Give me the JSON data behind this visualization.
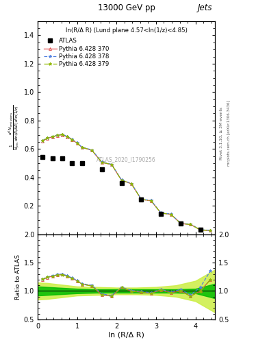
{
  "title": "13000 GeV pp",
  "title_right": "Jets",
  "panel_title": "ln(R/Δ R) (Lund plane 4.57<ln(1/z)<4.85)",
  "xlabel": "ln (R/Δ R)",
  "ylabel_ratio": "Ratio to ATLAS",
  "watermark": "ATLAS_2020_I1790256",
  "right_label1": "Rivet 3.1.10, ≥ 3M events",
  "right_label2": "mcplots.cern.ch [arXiv:1306.3436]",
  "xlim": [
    0,
    4.5
  ],
  "ylim_main": [
    0,
    1.5
  ],
  "ylim_ratio": [
    0.5,
    2.0
  ],
  "yticks_main": [
    0.2,
    0.4,
    0.6,
    0.8,
    1.0,
    1.2,
    1.4
  ],
  "yticks_ratio": [
    0.5,
    1.0,
    1.5,
    2.0
  ],
  "atlas_x": [
    0.125,
    0.375,
    0.625,
    0.875,
    1.125,
    1.625,
    2.125,
    2.625,
    3.125,
    3.625,
    4.125
  ],
  "atlas_y": [
    0.545,
    0.535,
    0.535,
    0.5,
    0.5,
    0.455,
    0.358,
    0.245,
    0.145,
    0.075,
    0.03
  ],
  "pythia370_x": [
    0.125,
    0.25,
    0.375,
    0.5,
    0.625,
    0.75,
    0.875,
    1.0,
    1.125,
    1.375,
    1.625,
    1.875,
    2.125,
    2.375,
    2.625,
    2.875,
    3.125,
    3.375,
    3.625,
    3.875,
    4.125,
    4.375
  ],
  "pythia370_y": [
    0.655,
    0.675,
    0.685,
    0.695,
    0.7,
    0.685,
    0.665,
    0.64,
    0.61,
    0.59,
    0.505,
    0.49,
    0.38,
    0.355,
    0.245,
    0.235,
    0.148,
    0.14,
    0.075,
    0.068,
    0.03,
    0.025
  ],
  "pythia378_x": [
    0.125,
    0.25,
    0.375,
    0.5,
    0.625,
    0.75,
    0.875,
    1.0,
    1.125,
    1.375,
    1.625,
    1.875,
    2.125,
    2.375,
    2.625,
    2.875,
    3.125,
    3.375,
    3.625,
    3.875,
    4.125,
    4.375
  ],
  "pythia378_y": [
    0.66,
    0.678,
    0.688,
    0.698,
    0.703,
    0.688,
    0.668,
    0.643,
    0.613,
    0.593,
    0.508,
    0.492,
    0.382,
    0.357,
    0.247,
    0.237,
    0.15,
    0.142,
    0.077,
    0.07,
    0.032,
    0.027
  ],
  "pythia379_x": [
    0.125,
    0.25,
    0.375,
    0.5,
    0.625,
    0.75,
    0.875,
    1.0,
    1.125,
    1.375,
    1.625,
    1.875,
    2.125,
    2.375,
    2.625,
    2.875,
    3.125,
    3.375,
    3.625,
    3.875,
    4.125,
    4.375
  ],
  "pythia379_y": [
    0.658,
    0.676,
    0.686,
    0.696,
    0.701,
    0.686,
    0.666,
    0.641,
    0.611,
    0.591,
    0.506,
    0.49,
    0.38,
    0.355,
    0.245,
    0.235,
    0.148,
    0.14,
    0.075,
    0.068,
    0.03,
    0.025
  ],
  "ratio370_y": [
    1.2,
    1.24,
    1.26,
    1.28,
    1.29,
    1.26,
    1.22,
    1.18,
    1.12,
    1.09,
    0.93,
    0.91,
    1.06,
    1.0,
    0.98,
    0.96,
    1.02,
    0.97,
    1.0,
    0.91,
    1.0,
    1.2
  ],
  "ratio378_y": [
    1.21,
    1.25,
    1.27,
    1.29,
    1.3,
    1.27,
    1.23,
    1.19,
    1.13,
    1.1,
    0.95,
    0.92,
    1.07,
    1.01,
    0.99,
    0.97,
    1.03,
    0.98,
    1.03,
    0.93,
    1.07,
    1.35
  ],
  "ratio379_y": [
    1.205,
    1.243,
    1.26,
    1.278,
    1.288,
    1.258,
    1.22,
    1.18,
    1.12,
    1.088,
    0.932,
    0.91,
    1.062,
    0.998,
    0.978,
    0.958,
    1.018,
    0.968,
    1.0,
    0.908,
    0.999,
    1.195
  ],
  "atlas_band_x": [
    0.0,
    0.25,
    0.5,
    0.75,
    1.0,
    1.5,
    2.0,
    2.5,
    3.0,
    3.5,
    4.0,
    4.5
  ],
  "atlas_band_inner_low": [
    0.92,
    0.93,
    0.94,
    0.95,
    0.96,
    0.97,
    0.97,
    0.97,
    0.97,
    0.97,
    0.96,
    0.87
  ],
  "atlas_band_inner_high": [
    1.08,
    1.07,
    1.06,
    1.05,
    1.04,
    1.03,
    1.03,
    1.03,
    1.03,
    1.03,
    1.04,
    1.13
  ],
  "atlas_band_outer_low": [
    0.85,
    0.86,
    0.88,
    0.9,
    0.92,
    0.93,
    0.94,
    0.94,
    0.93,
    0.9,
    0.82,
    0.62
  ],
  "atlas_band_outer_high": [
    1.15,
    1.14,
    1.12,
    1.1,
    1.08,
    1.07,
    1.06,
    1.06,
    1.07,
    1.1,
    1.18,
    1.38
  ],
  "color_370": "#e05050",
  "color_378": "#5080e0",
  "color_379": "#90b800",
  "color_atlas": "#000000",
  "inner_band_color": "#00bb00",
  "outer_band_color": "#ccee44"
}
